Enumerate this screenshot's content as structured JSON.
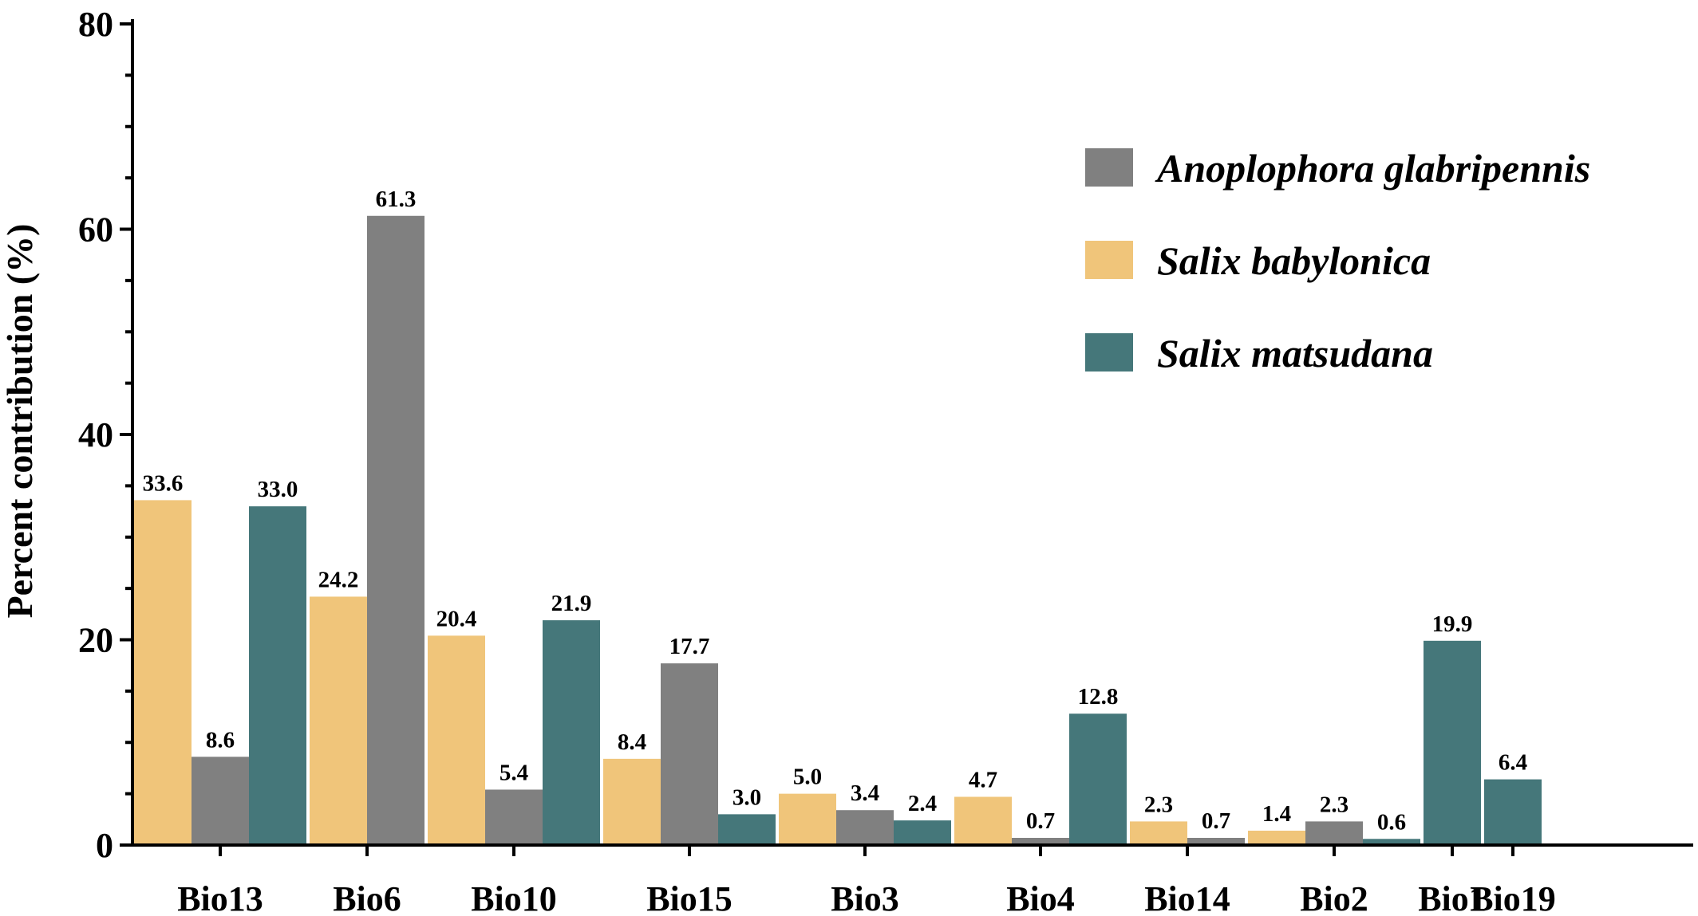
{
  "chart_data": {
    "type": "bar",
    "title": "",
    "xlabel": "",
    "ylabel": "Percent contribution (%)",
    "ylim": [
      0,
      80
    ],
    "y_ticks": [
      0,
      20,
      40,
      60,
      80
    ],
    "grid": false,
    "legend_position": "top-right",
    "series_order": [
      "Salix babylonica",
      "Anoplophora glabripennis",
      "Salix matsudana"
    ],
    "colors": {
      "Anoplophora glabripennis": "#808080",
      "Salix babylonica": "#f0c57a",
      "Salix matsudana": "#45777a"
    },
    "legend": [
      {
        "name": "Anoplophora glabripennis",
        "color": "#808080"
      },
      {
        "name": "Salix babylonica",
        "color": "#f0c57a"
      },
      {
        "name": "Salix matsudana",
        "color": "#45777a"
      }
    ],
    "groups": [
      {
        "category": "Bio13",
        "bars": [
          {
            "series": "Salix babylonica",
            "value": 33.6,
            "label": "33.6"
          },
          {
            "series": "Anoplophora glabripennis",
            "value": 8.6,
            "label": "8.6"
          },
          {
            "series": "Salix matsudana",
            "value": 33.0,
            "label": "33.0"
          }
        ]
      },
      {
        "category": "Bio6",
        "bars": [
          {
            "series": "Salix babylonica",
            "value": 24.2,
            "label": "24.2"
          },
          {
            "series": "Anoplophora glabripennis",
            "value": 61.3,
            "label": "61.3"
          }
        ]
      },
      {
        "category": "Bio10",
        "bars": [
          {
            "series": "Salix babylonica",
            "value": 20.4,
            "label": "20.4"
          },
          {
            "series": "Anoplophora glabripennis",
            "value": 5.4,
            "label": "5.4"
          },
          {
            "series": "Salix matsudana",
            "value": 21.9,
            "label": "21.9"
          }
        ]
      },
      {
        "category": "Bio15",
        "bars": [
          {
            "series": "Salix babylonica",
            "value": 8.4,
            "label": "8.4"
          },
          {
            "series": "Anoplophora glabripennis",
            "value": 17.7,
            "label": "17.7"
          },
          {
            "series": "Salix matsudana",
            "value": 3.0,
            "label": "3.0"
          }
        ]
      },
      {
        "category": "Bio3",
        "bars": [
          {
            "series": "Salix babylonica",
            "value": 5.0,
            "label": "5.0"
          },
          {
            "series": "Anoplophora glabripennis",
            "value": 3.4,
            "label": "3.4"
          },
          {
            "series": "Salix matsudana",
            "value": 2.4,
            "label": "2.4"
          }
        ]
      },
      {
        "category": "Bio4",
        "bars": [
          {
            "series": "Salix babylonica",
            "value": 4.7,
            "label": "4.7"
          },
          {
            "series": "Anoplophora glabripennis",
            "value": 0.7,
            "label": "0.7"
          },
          {
            "series": "Salix matsudana",
            "value": 12.8,
            "label": "12.8"
          }
        ]
      },
      {
        "category": "Bio14",
        "bars": [
          {
            "series": "Salix babylonica",
            "value": 2.3,
            "label": "2.3"
          },
          {
            "series": "Anoplophora glabripennis",
            "value": 0.7,
            "label": "0.7"
          }
        ]
      },
      {
        "category": "Bio2",
        "bars": [
          {
            "series": "Salix babylonica",
            "value": 1.4,
            "label": "1.4"
          },
          {
            "series": "Anoplophora glabripennis",
            "value": 2.3,
            "label": "2.3"
          },
          {
            "series": "Salix matsudana",
            "value": 0.6,
            "label": "0.6"
          }
        ]
      },
      {
        "category": "Bio1",
        "bars": [
          {
            "series": "Salix matsudana",
            "value": 19.9,
            "label": "19.9"
          }
        ]
      },
      {
        "category": "Bio19",
        "bars": [
          {
            "series": "Salix matsudana",
            "value": 6.4,
            "label": "6.4"
          }
        ]
      }
    ]
  }
}
